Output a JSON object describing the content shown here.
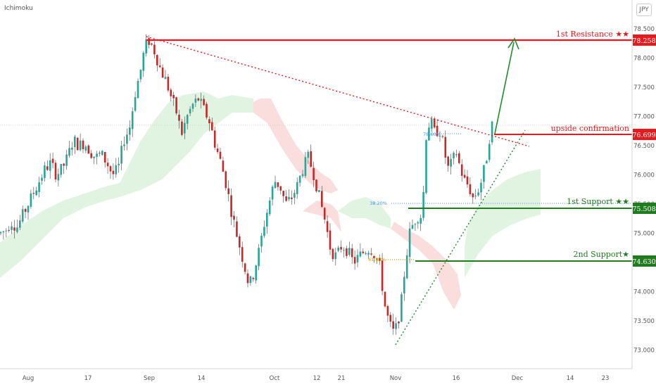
{
  "indicator_label": "Ichimoku",
  "currency_button": "JPY",
  "colors": {
    "resistance": "#e41a1c",
    "support": "#1e7b1e",
    "support2_dotted": "#c9a400",
    "candle_up": "#26a69a",
    "candle_down": "#c62828",
    "cloud_bull": "#cdeccd",
    "cloud_bear": "#f8d0d0",
    "arrow": "#1e8c2a",
    "fib_line": "#4a90d9"
  },
  "chart_data": {
    "type": "candlestick",
    "symbol": "JPY",
    "y_axis": {
      "ticks": [
        "78.500",
        "78.000",
        "77.500",
        "77.000",
        "76.500",
        "76.000",
        "75.500",
        "75.000",
        "74.500",
        "74.000",
        "73.500",
        "73.000"
      ],
      "ylim": [
        72.85,
        78.75
      ]
    },
    "x_axis": {
      "ticks": [
        "Aug",
        "17",
        "Sep",
        "14",
        "Oct",
        "12",
        "21",
        "Nov",
        "16",
        "Dec",
        "14",
        "23"
      ]
    },
    "levels": [
      {
        "label": "1st Resistance ★★",
        "value": "78.258",
        "y": 78.258,
        "kind": "resistance"
      },
      {
        "label": "upside confirmation",
        "value": "76.699",
        "y": 76.699,
        "kind": "resistance"
      },
      {
        "label": "1st Support ★★",
        "value": "75.508",
        "y": 75.508,
        "kind": "support"
      },
      {
        "label": "2nd Support★",
        "value": "74.630",
        "y": 74.63,
        "kind": "support"
      }
    ],
    "fib_labels": [
      "38.20%",
      "61.80%",
      "78.60%"
    ],
    "price_path": [
      [
        0,
        75.0
      ],
      [
        8,
        75.05
      ],
      [
        16,
        75.2
      ],
      [
        24,
        75.1
      ],
      [
        32,
        75.3
      ],
      [
        40,
        75.5
      ],
      [
        48,
        75.7
      ],
      [
        56,
        75.9
      ],
      [
        64,
        76.1
      ],
      [
        72,
        76.2
      ],
      [
        80,
        76.0
      ],
      [
        88,
        76.1
      ],
      [
        96,
        76.3
      ],
      [
        104,
        76.6
      ],
      [
        112,
        76.5
      ],
      [
        120,
        76.55
      ],
      [
        128,
        76.4
      ],
      [
        136,
        76.3
      ],
      [
        144,
        76.35
      ],
      [
        152,
        76.2
      ],
      [
        160,
        76.0
      ],
      [
        168,
        76.1
      ],
      [
        176,
        76.6
      ],
      [
        184,
        76.8
      ],
      [
        192,
        77.4
      ],
      [
        200,
        77.8
      ],
      [
        206,
        78.2
      ],
      [
        212,
        78.3
      ],
      [
        220,
        78.1
      ],
      [
        228,
        77.8
      ],
      [
        236,
        77.6
      ],
      [
        244,
        77.3
      ],
      [
        250,
        77.1
      ],
      [
        258,
        76.7
      ],
      [
        266,
        77.0
      ],
      [
        274,
        77.2
      ],
      [
        282,
        77.3
      ],
      [
        290,
        77.1
      ],
      [
        298,
        76.9
      ],
      [
        306,
        76.5
      ],
      [
        314,
        76.2
      ],
      [
        322,
        75.8
      ],
      [
        330,
        75.3
      ],
      [
        338,
        74.9
      ],
      [
        346,
        74.5
      ],
      [
        354,
        74.1
      ],
      [
        360,
        74.3
      ],
      [
        368,
        74.7
      ],
      [
        376,
        75.2
      ],
      [
        384,
        75.6
      ],
      [
        390,
        75.9
      ],
      [
        398,
        75.8
      ],
      [
        406,
        75.5
      ],
      [
        414,
        75.6
      ],
      [
        422,
        75.8
      ],
      [
        430,
        76.1
      ],
      [
        438,
        76.3
      ],
      [
        446,
        76.0
      ],
      [
        454,
        75.6
      ],
      [
        462,
        75.2
      ],
      [
        470,
        74.7
      ],
      [
        478,
        74.6
      ],
      [
        486,
        74.8
      ],
      [
        494,
        74.7
      ],
      [
        502,
        74.5
      ],
      [
        510,
        74.6
      ],
      [
        518,
        74.7
      ],
      [
        526,
        74.75
      ],
      [
        534,
        74.6
      ],
      [
        540,
        74.4
      ],
      [
        546,
        73.8
      ],
      [
        552,
        73.5
      ],
      [
        558,
        73.3
      ],
      [
        564,
        73.4
      ],
      [
        570,
        73.8
      ],
      [
        576,
        74.5
      ],
      [
        582,
        75.0
      ],
      [
        588,
        75.2
      ],
      [
        594,
        75.3
      ],
      [
        600,
        75.3
      ],
      [
        606,
        76.8
      ],
      [
        612,
        76.9
      ],
      [
        618,
        76.7
      ],
      [
        624,
        76.8
      ],
      [
        630,
        76.5
      ],
      [
        636,
        76.1
      ],
      [
        642,
        76.2
      ],
      [
        648,
        76.4
      ],
      [
        654,
        76.1
      ],
      [
        660,
        75.9
      ],
      [
        666,
        75.8
      ],
      [
        672,
        75.6
      ],
      [
        678,
        75.7
      ],
      [
        684,
        75.9
      ],
      [
        690,
        76.2
      ],
      [
        696,
        76.7
      ],
      [
        700,
        76.9
      ]
    ]
  }
}
